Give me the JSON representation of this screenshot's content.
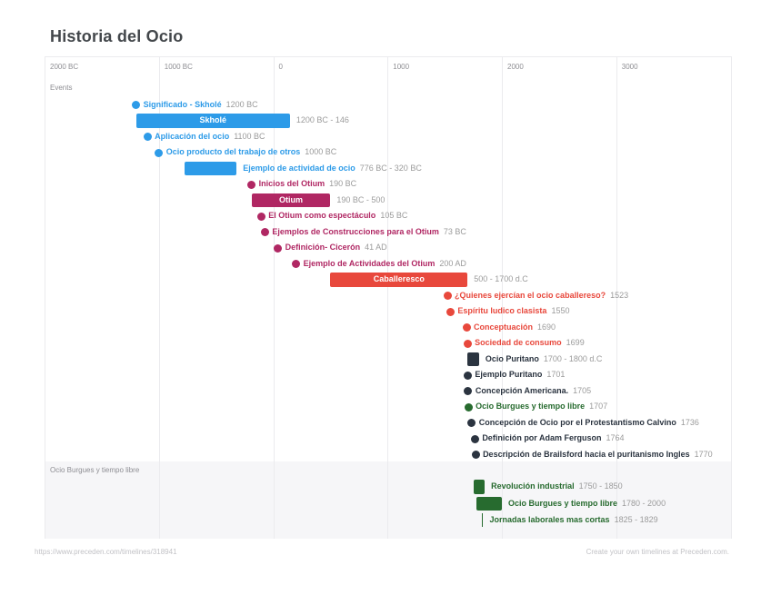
{
  "page": {
    "title": "Historia del Ocio",
    "footer_left": "https://www.preceden.com/timelines/318941",
    "footer_right": "Create your own timelines at Preceden.com."
  },
  "colors": {
    "blue": "#2D9BE8",
    "magenta": "#B02763",
    "red": "#E8483C",
    "dark": "#2B3440",
    "green": "#276B2F",
    "grid_line": "#EBEBEE",
    "axis_text": "#8E8E93",
    "date_text": "#9B9B9B",
    "band_bg": "#F6F6F8",
    "bar_text": "#FFFFFF",
    "footer_text": "#C2C2C6",
    "title_text": "#43474B"
  },
  "chart_data": {
    "type": "bar",
    "subtype": "timeline",
    "title": "Historia del Ocio",
    "x_axis": {
      "unit": "years",
      "min": -2000,
      "max": 4000,
      "grid": true,
      "ticks": [
        {
          "year": -2000,
          "label": "2000 BC"
        },
        {
          "year": -1000,
          "label": "1000 BC"
        },
        {
          "year": 0,
          "label": "0"
        },
        {
          "year": 1000,
          "label": "1000"
        },
        {
          "year": 2000,
          "label": "2000"
        },
        {
          "year": 3000,
          "label": "3000"
        },
        {
          "year": 4000,
          "label": ""
        }
      ]
    },
    "groups": [
      {
        "label": "Events",
        "band": false,
        "events": [
          {
            "kind": "point",
            "year": -1200,
            "label": "Significado - Skholé",
            "date": "1200 BC",
            "color": "blue"
          },
          {
            "kind": "range",
            "start": -1200,
            "end": 146,
            "label": "Skholé",
            "date": "1200 BC - 146",
            "color": "blue",
            "label_inside": true
          },
          {
            "kind": "point",
            "year": -1100,
            "label": "Aplicación del ocio",
            "date": "1100 BC",
            "color": "blue"
          },
          {
            "kind": "point",
            "year": -1000,
            "label": "Ocio producto del trabajo de otros",
            "date": "1000 BC",
            "color": "blue"
          },
          {
            "kind": "range",
            "start": -776,
            "end": -320,
            "label": "Ejemplo de actividad de ocio",
            "date": "776 BC - 320 BC",
            "color": "blue",
            "label_inside": false
          },
          {
            "kind": "point",
            "year": -190,
            "label": "Inicios del Otium",
            "date": "190 BC",
            "color": "magenta"
          },
          {
            "kind": "range",
            "start": -190,
            "end": 500,
            "label": "Otium",
            "date": "190 BC - 500",
            "color": "magenta",
            "label_inside": true
          },
          {
            "kind": "point",
            "year": -105,
            "label": "El Otium como espectáculo",
            "date": "105 BC",
            "color": "magenta"
          },
          {
            "kind": "point",
            "year": -73,
            "label": "Ejemplos de Construcciones para el Otium",
            "date": "73 BC",
            "color": "magenta"
          },
          {
            "kind": "point",
            "year": 41,
            "label": "Definición- Cicerón",
            "date": "41 AD",
            "color": "magenta"
          },
          {
            "kind": "point",
            "year": 200,
            "label": "Ejemplo de Actividades del Otium",
            "date": "200 AD",
            "color": "magenta"
          },
          {
            "kind": "range",
            "start": 500,
            "end": 1700,
            "label": "Caballeresco",
            "date": "500 - 1700 d.C",
            "color": "red",
            "label_inside": true
          },
          {
            "kind": "point",
            "year": 1523,
            "label": "¿Quienes ejercían el ocio caballereso?",
            "date": "1523",
            "color": "red"
          },
          {
            "kind": "point",
            "year": 1550,
            "label": "Espíritu ludico clasista",
            "date": "1550",
            "color": "red"
          },
          {
            "kind": "point",
            "year": 1690,
            "label": "Conceptuación",
            "date": "1690",
            "color": "red"
          },
          {
            "kind": "point",
            "year": 1699,
            "label": "Sociedad de consumo",
            "date": "1699",
            "color": "red"
          },
          {
            "kind": "range",
            "start": 1700,
            "end": 1800,
            "label": "Ocio Puritano",
            "date": "1700 - 1800 d.C",
            "color": "dark",
            "label_inside": false
          },
          {
            "kind": "point",
            "year": 1701,
            "label": "Ejemplo Puritano",
            "date": "1701",
            "color": "dark"
          },
          {
            "kind": "point",
            "year": 1705,
            "label": "Concepción Americana.",
            "date": "1705",
            "color": "dark"
          },
          {
            "kind": "point",
            "year": 1707,
            "label": "Ocio Burgues y tiempo libre",
            "date": "1707",
            "color": "green"
          },
          {
            "kind": "point",
            "year": 1736,
            "label": "Concepción de Ocio por el Protestantismo Calvino",
            "date": "1736",
            "color": "dark"
          },
          {
            "kind": "point",
            "year": 1764,
            "label": "Definición por Adam Ferguson",
            "date": "1764",
            "color": "dark"
          },
          {
            "kind": "point",
            "year": 1770,
            "label": "Descripción de Brailsford hacia el puritanismo Ingles",
            "date": "1770",
            "color": "dark"
          }
        ]
      },
      {
        "label": "Ocio Burgues y tiempo libre",
        "band": true,
        "events": [
          {
            "kind": "range",
            "start": 1750,
            "end": 1850,
            "label": "Revolución industrial",
            "date": "1750 - 1850",
            "color": "green",
            "label_inside": false
          },
          {
            "kind": "range",
            "start": 1780,
            "end": 2000,
            "label": "Ocio Burgues y tiempo libre",
            "date": "1780 - 2000",
            "color": "green",
            "label_inside": false
          },
          {
            "kind": "range",
            "start": 1825,
            "end": 1829,
            "label": "Jornadas laborales mas cortas",
            "date": "1825 - 1829",
            "color": "green",
            "label_inside": false
          }
        ]
      }
    ]
  }
}
